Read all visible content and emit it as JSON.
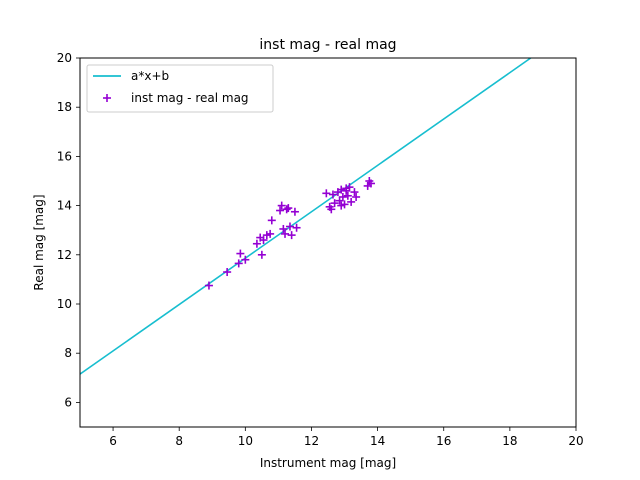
{
  "chart_data": {
    "type": "scatter",
    "title": "inst mag - real mag",
    "xlabel": "Instrument mag [mag]",
    "ylabel": "Real mag [mag]",
    "xlim": [
      5,
      20
    ],
    "ylim": [
      5,
      20
    ],
    "xticks": [
      6,
      8,
      10,
      12,
      14,
      16,
      18,
      20
    ],
    "yticks": [
      6,
      8,
      10,
      12,
      14,
      16,
      18,
      20
    ],
    "grid": false,
    "legend_position": "top-left",
    "series": [
      {
        "name": "a*x+b",
        "kind": "line",
        "color": "#17becf",
        "x": [
          5,
          18.63
        ],
        "y": [
          7.15,
          20.0
        ]
      },
      {
        "name": "inst mag - real mag",
        "kind": "scatter",
        "marker": "+",
        "color": "#9400d3",
        "x": [
          8.9,
          9.45,
          9.8,
          9.85,
          10.0,
          10.35,
          10.45,
          10.5,
          10.55,
          10.65,
          10.75,
          10.8,
          11.05,
          11.1,
          11.15,
          11.2,
          11.25,
          11.3,
          11.35,
          11.4,
          11.5,
          11.55,
          12.45,
          12.55,
          12.6,
          12.65,
          12.7,
          12.8,
          12.85,
          12.9,
          12.95,
          13.0,
          13.05,
          13.1,
          13.15,
          13.2,
          13.3,
          13.35,
          12.9,
          13.05,
          13.7,
          13.75,
          13.8
        ],
        "y": [
          10.75,
          11.3,
          11.65,
          12.05,
          11.8,
          12.45,
          12.7,
          12.0,
          12.6,
          12.8,
          12.85,
          13.4,
          13.8,
          14.0,
          13.05,
          12.85,
          13.85,
          13.9,
          13.15,
          12.8,
          13.75,
          13.1,
          14.5,
          13.95,
          13.85,
          14.45,
          14.1,
          14.55,
          14.2,
          14.65,
          14.35,
          14.05,
          14.7,
          14.4,
          14.75,
          14.15,
          14.55,
          14.35,
          14.0,
          14.6,
          14.8,
          15.0,
          14.9
        ]
      }
    ]
  }
}
